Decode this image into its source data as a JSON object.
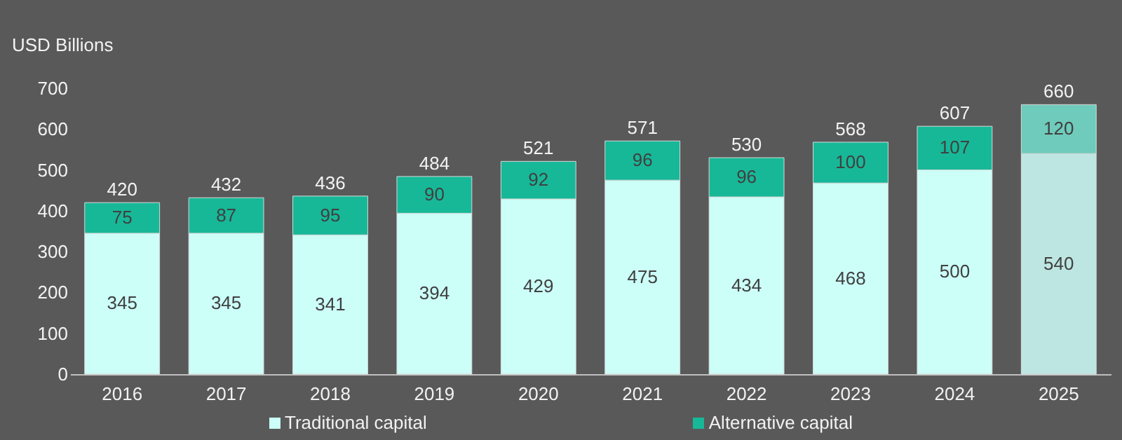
{
  "chart_data": {
    "type": "bar",
    "stacked": true,
    "ylabel": "USD Billions",
    "categories": [
      "2016",
      "2017",
      "2018",
      "2019",
      "2020",
      "2021",
      "2022",
      "2023",
      "2024",
      "2025"
    ],
    "series": [
      {
        "name": "Traditional capital",
        "color": "#ccfff8",
        "colors": [
          "#ccfff8",
          "#ccfff8",
          "#ccfff8",
          "#ccfff8",
          "#ccfff8",
          "#ccfff8",
          "#ccfff8",
          "#ccfff8",
          "#ccfff8",
          "#bde6e2"
        ],
        "values": [
          345,
          345,
          341,
          394,
          429,
          475,
          434,
          468,
          500,
          540
        ]
      },
      {
        "name": "Alternative capital",
        "color": "#17b898",
        "colors": [
          "#17b898",
          "#17b898",
          "#17b898",
          "#17b898",
          "#17b898",
          "#17b898",
          "#17b898",
          "#17b898",
          "#17b898",
          "#6fcbbb"
        ],
        "values": [
          75,
          87,
          95,
          90,
          92,
          96,
          96,
          100,
          107,
          120
        ]
      }
    ],
    "totals": [
      "420",
      "432",
      "436",
      "484",
      "521",
      "571",
      "530",
      "568",
      "607",
      "660"
    ],
    "data_labels": true,
    "ylim": [
      0,
      700
    ],
    "yticks": [
      0,
      100,
      200,
      300,
      400,
      500,
      600,
      700
    ],
    "grid": false,
    "legend": "bottom"
  }
}
